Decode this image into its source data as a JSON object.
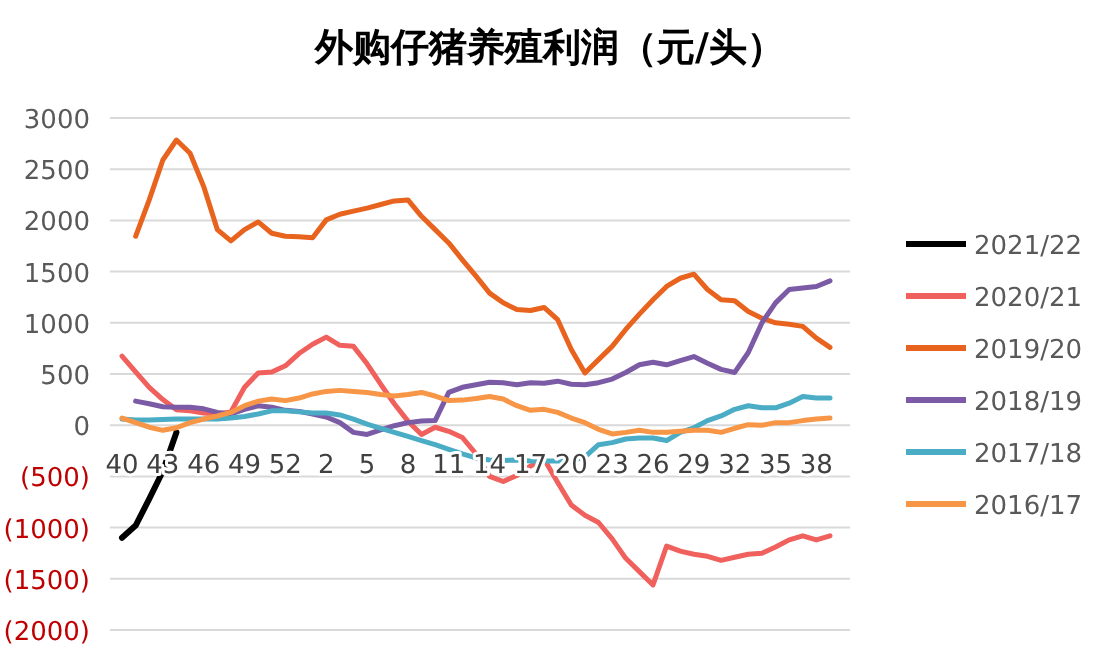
{
  "chart_data": {
    "type": "line",
    "title": "外购仔猪养殖利润（元/头）",
    "categories": [
      "40",
      null,
      null,
      "43",
      null,
      null,
      "46",
      null,
      null,
      "49",
      null,
      null,
      "52",
      null,
      null,
      "2",
      null,
      null,
      "5",
      null,
      null,
      "8",
      null,
      null,
      "11",
      null,
      null,
      "14",
      null,
      null,
      "17",
      null,
      null,
      "20",
      null,
      null,
      "23",
      null,
      null,
      "26",
      null,
      null,
      "29",
      null,
      null,
      "32",
      null,
      null,
      "35",
      null,
      null,
      "38",
      null
    ],
    "ylim": [
      -2000,
      3000
    ],
    "yticks": [
      {
        "value": -2000,
        "label": "(2000)"
      },
      {
        "value": -1500,
        "label": "(1500)"
      },
      {
        "value": -1000,
        "label": "(1000)"
      },
      {
        "value": -500,
        "label": "(500)"
      },
      0,
      500,
      1000,
      1500,
      2000,
      2500,
      3000
    ],
    "grid": "y",
    "legend": "right",
    "line_style": "solid",
    "marker": "none",
    "series": [
      {
        "name": "2021/22",
        "color": "#000000",
        "values": [
          -1100,
          -980,
          -720,
          -450,
          -70,
          null,
          null,
          null,
          null,
          null,
          null,
          null,
          null,
          null,
          null,
          null,
          null,
          null,
          null,
          null,
          null,
          null,
          null,
          null,
          null,
          null,
          null,
          null,
          null,
          null,
          null,
          null,
          null,
          null,
          null,
          null,
          null,
          null,
          null,
          null,
          null,
          null,
          null,
          null,
          null,
          null,
          null,
          null,
          null,
          null,
          null,
          null,
          null
        ]
      },
      {
        "name": "2020/21",
        "color": "#f0605d",
        "values": [
          675,
          520,
          370,
          250,
          150,
          140,
          120,
          110,
          130,
          370,
          510,
          520,
          580,
          700,
          790,
          860,
          780,
          770,
          600,
          400,
          210,
          40,
          -90,
          -20,
          -60,
          -120,
          -280,
          -500,
          -550,
          -490,
          -400,
          -330,
          -560,
          -780,
          -880,
          -950,
          -1110,
          -1300,
          -1430,
          -1560,
          -1180,
          -1230,
          -1260,
          -1280,
          -1320,
          -1290,
          -1260,
          -1250,
          -1190,
          -1120,
          -1080,
          -1120,
          -1080
        ]
      },
      {
        "name": "2019/20",
        "color": "#e8641e",
        "values": [
          null,
          1845,
          2200,
          2590,
          2785,
          2655,
          2330,
          1910,
          1800,
          1910,
          1985,
          1875,
          1845,
          1840,
          1830,
          2005,
          2060,
          2090,
          2120,
          2155,
          2190,
          2200,
          2040,
          1910,
          1780,
          1615,
          1455,
          1290,
          1195,
          1130,
          1120,
          1150,
          1030,
          740,
          510,
          640,
          770,
          935,
          1085,
          1225,
          1355,
          1435,
          1475,
          1325,
          1225,
          1215,
          1110,
          1045,
          1000,
          985,
          965,
          850,
          760
        ]
      },
      {
        "name": "2018/19",
        "color": "#7b5aa6",
        "values": [
          null,
          235,
          210,
          180,
          175,
          175,
          160,
          125,
          110,
          155,
          190,
          175,
          145,
          135,
          110,
          80,
          25,
          -70,
          -90,
          -45,
          -5,
          25,
          40,
          45,
          320,
          370,
          395,
          420,
          415,
          395,
          415,
          410,
          430,
          400,
          395,
          415,
          450,
          515,
          590,
          615,
          590,
          630,
          670,
          605,
          545,
          515,
          710,
          1000,
          1195,
          1325,
          1340,
          1355,
          1410
        ]
      },
      {
        "name": "2017/18",
        "color": "#4bacc6",
        "values": [
          60,
          50,
          50,
          55,
          60,
          60,
          60,
          60,
          70,
          85,
          110,
          140,
          140,
          130,
          120,
          120,
          100,
          60,
          10,
          -30,
          -70,
          -110,
          -150,
          -190,
          -235,
          -280,
          -320,
          -340,
          -345,
          -340,
          -350,
          -350,
          -350,
          -350,
          -310,
          -190,
          -170,
          -135,
          -125,
          -125,
          -150,
          -70,
          -25,
          45,
          90,
          155,
          190,
          170,
          170,
          215,
          280,
          265,
          265
        ]
      },
      {
        "name": "2016/17",
        "color": "#f79646",
        "values": [
          70,
          25,
          -20,
          -50,
          -25,
          25,
          60,
          90,
          125,
          190,
          235,
          255,
          240,
          265,
          305,
          330,
          340,
          330,
          320,
          300,
          285,
          300,
          320,
          285,
          240,
          245,
          260,
          280,
          255,
          190,
          145,
          155,
          125,
          70,
          25,
          -40,
          -85,
          -70,
          -50,
          -70,
          -70,
          -60,
          -50,
          -50,
          -70,
          -30,
          5,
          0,
          25,
          25,
          45,
          60,
          70
        ]
      }
    ]
  }
}
